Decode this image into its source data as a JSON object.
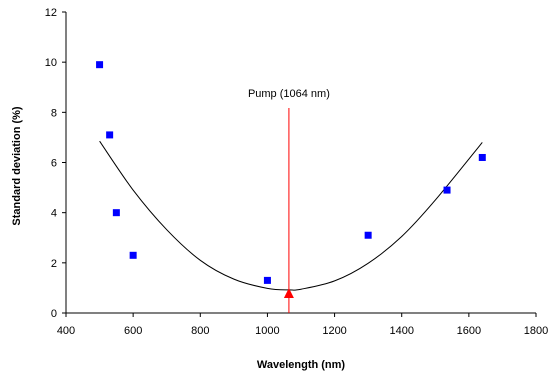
{
  "chart_data": {
    "type": "scatter",
    "xlabel": "Wavelength (nm)",
    "ylabel": "Standard deviation (%)",
    "xlim": [
      400,
      1800
    ],
    "ylim": [
      0,
      12
    ],
    "xticks": [
      400,
      600,
      800,
      1000,
      1200,
      1400,
      1600,
      1800
    ],
    "yticks": [
      0,
      2,
      4,
      6,
      8,
      10,
      12
    ],
    "grid": false,
    "series": [
      {
        "x": [
          500,
          530,
          550,
          600,
          1000,
          1300,
          1535,
          1640
        ],
        "y": [
          9.9,
          7.1,
          4.0,
          2.3,
          1.3,
          3.1,
          4.9,
          6.2
        ],
        "color": "#0000ff",
        "marker": "square"
      }
    ],
    "fit_curve": {
      "type": "quadratic",
      "x": [
        500,
        600,
        700,
        800,
        900,
        1000,
        1064,
        1100,
        1200,
        1300,
        1400,
        1500,
        1640
      ],
      "y": [
        6.85,
        4.9,
        3.32,
        2.1,
        1.35,
        0.98,
        0.92,
        0.95,
        1.28,
        1.98,
        3.05,
        4.5,
        6.8
      ],
      "color": "#000000"
    },
    "annotations": [
      {
        "text": "Pump (1064 nm)",
        "x": 1064,
        "line_color": "#ff0000",
        "marker": "triangle-up",
        "marker_color": "#ff0000"
      }
    ]
  }
}
